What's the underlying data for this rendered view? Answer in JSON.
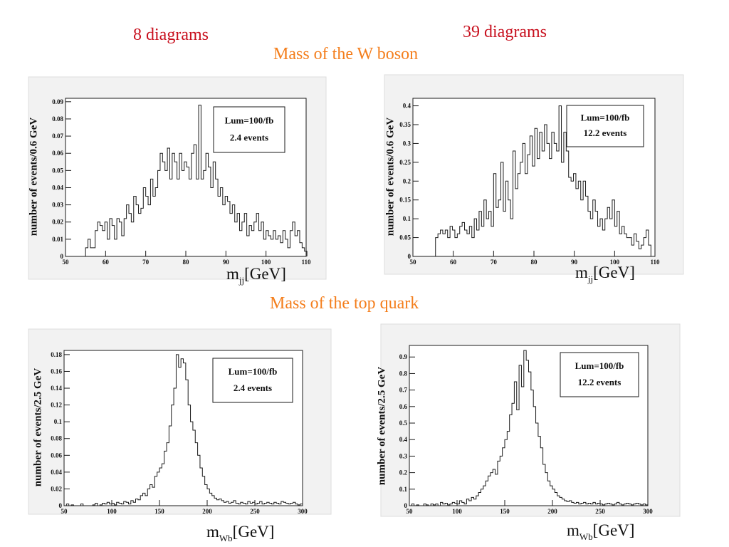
{
  "headers": {
    "left_count": "8 diagrams",
    "right_count": "39 diagrams",
    "w_section": "Mass of the W boson",
    "top_section": "Mass of the top quark"
  },
  "colors": {
    "count_text": "#c8101e",
    "section_text": "#f47e1c",
    "panel_bg": "#f2f2f2",
    "frame_bg": "#ffffff",
    "line": "#1a1a1a"
  },
  "chart_data": [
    {
      "type": "line",
      "title": "",
      "ylabel": "number of events/0.6 GeV",
      "xlabel_main": "m",
      "xlabel_sub": "jj",
      "xlabel_unit": "[GeV]",
      "xlim": [
        50,
        110
      ],
      "ylim": [
        0,
        0.092
      ],
      "xticks": [
        50,
        60,
        70,
        80,
        90,
        100,
        110
      ],
      "yticks": [
        "0",
        "0.01",
        "0.02",
        "0.03",
        "0.04",
        "0.05",
        "0.06",
        "0.07",
        "0.08",
        "0.09"
      ],
      "legend": [
        "Lum=100/fb",
        "2.4 events"
      ],
      "series": [
        {
          "bin_start": 55.0,
          "bin_width": 0.6,
          "values": [
            0.005,
            0.01,
            0.005,
            0.005,
            0.015,
            0.02,
            0.018,
            0.015,
            0.02,
            0.01,
            0.022,
            0.018,
            0.01,
            0.022,
            0.02,
            0.012,
            0.022,
            0.03,
            0.025,
            0.02,
            0.035,
            0.03,
            0.025,
            0.028,
            0.04,
            0.035,
            0.03,
            0.045,
            0.035,
            0.04,
            0.05,
            0.06,
            0.055,
            0.05,
            0.063,
            0.045,
            0.06,
            0.055,
            0.045,
            0.06,
            0.05,
            0.055,
            0.052,
            0.045,
            0.06,
            0.065,
            0.045,
            0.088,
            0.045,
            0.05,
            0.06,
            0.052,
            0.04,
            0.055,
            0.045,
            0.035,
            0.04,
            0.03,
            0.035,
            0.032,
            0.025,
            0.03,
            0.02,
            0.025,
            0.015,
            0.02,
            0.025,
            0.012,
            0.018,
            0.015,
            0.02,
            0.025,
            0.015,
            0.02,
            0.01,
            0.015,
            0.012,
            0.01,
            0.015,
            0.01,
            0.012,
            0.008,
            0.015,
            0.01,
            0.005,
            0.015,
            0.02,
            0.012,
            0.015,
            0.008,
            0.005,
            0.003
          ]
        }
      ]
    },
    {
      "type": "line",
      "title": "",
      "ylabel": "number of events/0.6 GeV",
      "xlabel_main": "m",
      "xlabel_sub": "jj",
      "xlabel_unit": "[GeV]",
      "xlim": [
        50,
        110
      ],
      "ylim": [
        0,
        0.42
      ],
      "xticks": [
        50,
        60,
        70,
        80,
        90,
        100,
        110
      ],
      "yticks": [
        "0",
        "0.05",
        "0.1",
        "0.15",
        "0.2",
        "0.25",
        "0.3",
        "0.35",
        "0.4"
      ],
      "legend": [
        "Lum=100/fb",
        "12.2 events"
      ],
      "series": [
        {
          "bin_start": 55.6,
          "bin_width": 0.6,
          "values": [
            0.05,
            0.06,
            0.07,
            0.06,
            0.07,
            0.05,
            0.08,
            0.07,
            0.05,
            0.06,
            0.08,
            0.09,
            0.07,
            0.06,
            0.08,
            0.05,
            0.1,
            0.07,
            0.12,
            0.08,
            0.15,
            0.1,
            0.12,
            0.08,
            0.22,
            0.13,
            0.15,
            0.25,
            0.12,
            0.2,
            0.15,
            0.1,
            0.28,
            0.18,
            0.22,
            0.25,
            0.3,
            0.22,
            0.27,
            0.32,
            0.24,
            0.34,
            0.26,
            0.33,
            0.28,
            0.35,
            0.3,
            0.26,
            0.33,
            0.3,
            0.28,
            0.4,
            0.25,
            0.33,
            0.28,
            0.21,
            0.2,
            0.22,
            0.18,
            0.2,
            0.15,
            0.2,
            0.16,
            0.12,
            0.1,
            0.15,
            0.12,
            0.08,
            0.1,
            0.07,
            0.1,
            0.13,
            0.1,
            0.15,
            0.08,
            0.12,
            0.06,
            0.08,
            0.06,
            0.05,
            0.05,
            0.03,
            0.06,
            0.04,
            0.02,
            0.03,
            0.05,
            0.07,
            0.03
          ]
        }
      ]
    },
    {
      "type": "line",
      "title": "",
      "ylabel": "number of events/2.5 GeV",
      "xlabel_main": "m",
      "xlabel_sub": "Wb",
      "xlabel_unit": "[GeV]",
      "xlim": [
        50,
        300
      ],
      "ylim": [
        0,
        0.185
      ],
      "xticks": [
        50,
        100,
        150,
        200,
        250,
        300
      ],
      "yticks": [
        "0",
        "0.02",
        "0.04",
        "0.06",
        "0.08",
        "0.1",
        "0.12",
        "0.14",
        "0.16",
        "0.18"
      ],
      "legend": [
        "Lum=100/fb",
        "2.4 events"
      ],
      "series": [
        {
          "bin_start": 52.5,
          "bin_width": 2.5,
          "values": [
            0.002,
            0,
            0.001,
            0,
            0,
            0,
            0.002,
            0,
            0,
            0,
            0,
            0.001,
            0.003,
            0,
            0.001,
            0.003,
            0.002,
            0.004,
            0.002,
            0.003,
            0.001,
            0.004,
            0.003,
            0.002,
            0.005,
            0.004,
            0.002,
            0.006,
            0.004,
            0.008,
            0.007,
            0.012,
            0.015,
            0.012,
            0.02,
            0.025,
            0.022,
            0.035,
            0.04,
            0.045,
            0.05,
            0.065,
            0.075,
            0.095,
            0.12,
            0.14,
            0.18,
            0.165,
            0.175,
            0.17,
            0.15,
            0.12,
            0.1,
            0.09,
            0.075,
            0.06,
            0.045,
            0.035,
            0.025,
            0.02,
            0.015,
            0.012,
            0.009,
            0.007,
            0.008,
            0.006,
            0.004,
            0.005,
            0.003,
            0.004,
            0.006,
            0.003,
            0.002,
            0.004,
            0.003,
            0.002,
            0.005,
            0.003,
            0.004,
            0.002,
            0.003,
            0.005,
            0.002,
            0.003,
            0.004,
            0.003,
            0.002,
            0.004,
            0.003,
            0.002,
            0.005,
            0.004,
            0.003,
            0.002,
            0.003,
            0.004,
            0.002,
            0.001,
            0.002
          ]
        }
      ]
    },
    {
      "type": "line",
      "title": "",
      "ylabel": "number of events/2.5 GeV",
      "xlabel_main": "m",
      "xlabel_sub": "Wb",
      "xlabel_unit": "[GeV]",
      "xlim": [
        50,
        300
      ],
      "ylim": [
        0,
        0.97
      ],
      "xticks": [
        50,
        100,
        150,
        200,
        250,
        300
      ],
      "yticks": [
        "0",
        "0.1",
        "0.2",
        "0.3",
        "0.4",
        "0.5",
        "0.6",
        "0.7",
        "0.8",
        "0.9"
      ],
      "legend": [
        "Lum=100/fb",
        "12.2 events"
      ],
      "series": [
        {
          "bin_start": 52.5,
          "bin_width": 2.5,
          "values": [
            0.01,
            0,
            0.005,
            0,
            0,
            0.01,
            0.005,
            0,
            0.01,
            0.005,
            0.01,
            0,
            0.02,
            0.01,
            0.015,
            0.005,
            0.01,
            0.02,
            0.015,
            0.01,
            0.03,
            0.02,
            0.01,
            0.04,
            0.03,
            0.05,
            0.04,
            0.06,
            0.08,
            0.1,
            0.12,
            0.15,
            0.18,
            0.2,
            0.22,
            0.19,
            0.27,
            0.3,
            0.35,
            0.4,
            0.45,
            0.55,
            0.62,
            0.75,
            0.58,
            0.85,
            0.72,
            0.94,
            0.88,
            0.81,
            0.7,
            0.6,
            0.5,
            0.42,
            0.35,
            0.25,
            0.2,
            0.15,
            0.12,
            0.1,
            0.08,
            0.06,
            0.05,
            0.04,
            0.03,
            0.025,
            0.03,
            0.02,
            0.015,
            0.02,
            0.01,
            0.015,
            0.02,
            0.01,
            0.015,
            0.01,
            0.02,
            0.01,
            0.015,
            0.01,
            0.005,
            0.01,
            0.015,
            0.01,
            0.005,
            0.01,
            0.02,
            0.01,
            0.005,
            0.01,
            0.015,
            0.01,
            0.005,
            0.01,
            0.015,
            0.01,
            0.005,
            0.01,
            0.005
          ]
        }
      ]
    }
  ]
}
